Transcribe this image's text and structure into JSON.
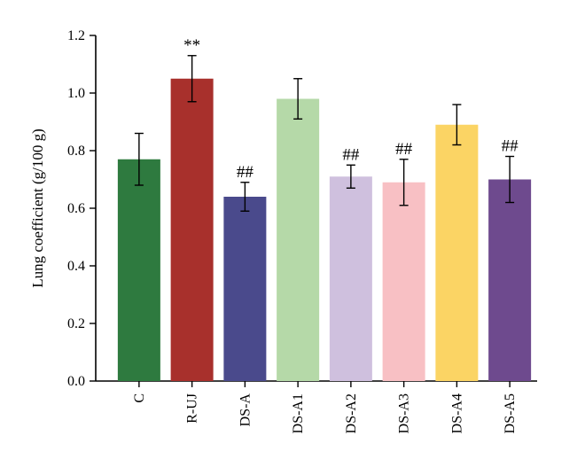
{
  "chart_data": {
    "type": "bar",
    "title": "",
    "xlabel": "",
    "ylabel": "Lung coefficient (g/100 g)",
    "ylim": [
      0,
      1.2
    ],
    "yticks": [
      0.0,
      0.2,
      0.4,
      0.6,
      0.8,
      1.0,
      1.2
    ],
    "ytick_labels": [
      "0.0",
      "0.2",
      "0.4",
      "0.6",
      "0.8",
      "1.0",
      "1.2"
    ],
    "categories": [
      "C",
      "R-UJ",
      "DS-A",
      "DS-A1",
      "DS-A2",
      "DS-A3",
      "DS-A4",
      "DS-A5"
    ],
    "values": [
      0.77,
      1.05,
      0.64,
      0.98,
      0.71,
      0.69,
      0.89,
      0.7
    ],
    "errors": [
      0.09,
      0.08,
      0.05,
      0.07,
      0.04,
      0.08,
      0.07,
      0.08
    ],
    "significance": [
      "",
      "**",
      "##",
      "",
      "##",
      "##",
      "",
      "##"
    ],
    "colors": [
      "#2e7a3f",
      "#a8302c",
      "#4a4a8c",
      "#b5d9a8",
      "#cfc0de",
      "#f8c0c4",
      "#fbd464",
      "#6e4a8e"
    ],
    "grid": false
  }
}
